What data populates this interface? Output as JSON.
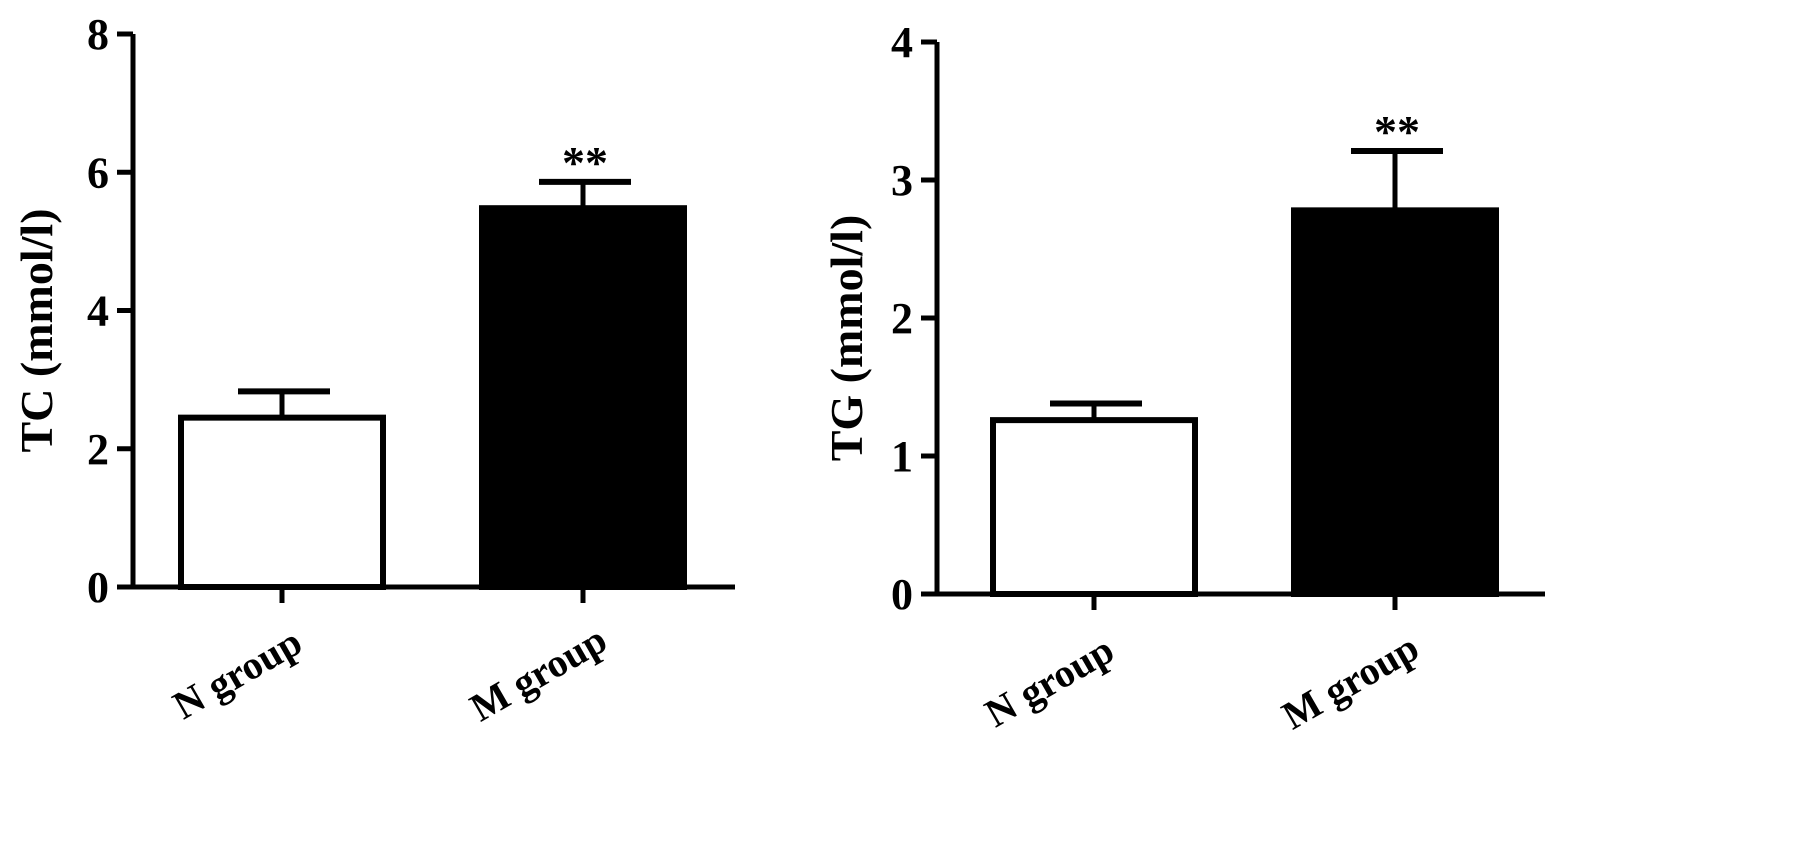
{
  "chart_data": [
    {
      "type": "bar",
      "categories": [
        "N group",
        "M group"
      ],
      "values": [
        2.45,
        5.48
      ],
      "error": [
        0.38,
        0.38
      ],
      "bar_fill": [
        "#ffffff",
        "#000000"
      ],
      "annotations": [
        "",
        "**"
      ],
      "ylabel": "TC (mmol/l)",
      "xlabel": "",
      "ylim": [
        0,
        8
      ],
      "yticks": [
        0,
        2,
        4,
        6,
        8
      ],
      "ytick_labels": [
        "0",
        "2",
        "4",
        "6",
        "8"
      ],
      "grid": false,
      "legend": "none"
    },
    {
      "type": "bar",
      "categories": [
        "N group",
        "M group"
      ],
      "values": [
        1.26,
        2.78
      ],
      "error": [
        0.12,
        0.43
      ],
      "bar_fill": [
        "#ffffff",
        "#000000"
      ],
      "annotations": [
        "",
        "**"
      ],
      "ylabel": "TG (mmol/l)",
      "xlabel": "",
      "ylim": [
        0,
        4
      ],
      "yticks": [
        0,
        1,
        2,
        3,
        4
      ],
      "ytick_labels": [
        "0",
        "1",
        "2",
        "3",
        "4"
      ],
      "grid": false,
      "legend": "none"
    }
  ]
}
